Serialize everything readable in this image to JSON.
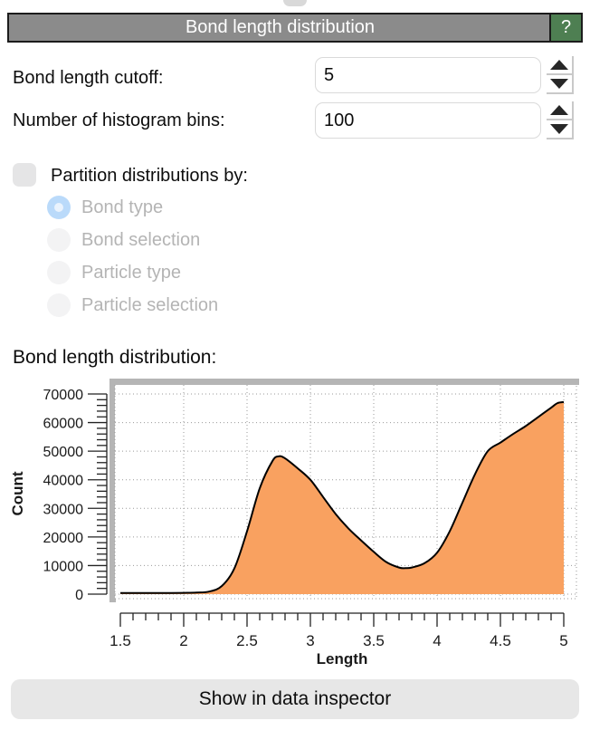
{
  "header": {
    "title": "Bond length distribution",
    "help_label": "?"
  },
  "params": [
    {
      "label": "Bond length cutoff:",
      "value": "5"
    },
    {
      "label": "Number of histogram bins:",
      "value": "100"
    }
  ],
  "partition": {
    "checkbox_label": "Partition distributions by:",
    "checked": false,
    "options": [
      {
        "label": "Bond type",
        "selected": true
      },
      {
        "label": "Bond selection",
        "selected": false
      },
      {
        "label": "Particle type",
        "selected": false
      },
      {
        "label": "Particle selection",
        "selected": false
      }
    ]
  },
  "plot_heading": "Bond length distribution:",
  "chart_data": {
    "type": "area",
    "title": "",
    "xlabel": "Length",
    "ylabel": "Count",
    "xlim": [
      1.5,
      5.0
    ],
    "ylim": [
      0,
      70000
    ],
    "x_major_ticks": [
      1.5,
      2,
      2.5,
      3,
      3.5,
      4,
      4.5,
      5
    ],
    "x_tick_labels": [
      "1.5",
      "2",
      "2.5",
      "3",
      "3.5",
      "4",
      "4.5",
      "5"
    ],
    "x_minor_step": 0.1,
    "y_major_ticks": [
      0,
      10000,
      20000,
      30000,
      40000,
      50000,
      60000,
      70000
    ],
    "y_tick_labels": [
      "0",
      "10000",
      "20000",
      "30000",
      "40000",
      "50000",
      "60000",
      "70000"
    ],
    "y_minor_step": 2000,
    "grid": "dotted",
    "legend": "none",
    "fill_color": "#F9A160",
    "line_color": "#000000",
    "x": [
      1.5,
      1.6,
      1.7,
      1.8,
      1.9,
      2.0,
      2.1,
      2.2,
      2.3,
      2.4,
      2.5,
      2.6,
      2.7,
      2.75,
      2.8,
      2.9,
      3.0,
      3.1,
      3.2,
      3.3,
      3.4,
      3.5,
      3.6,
      3.7,
      3.75,
      3.8,
      3.9,
      4.0,
      4.1,
      4.2,
      4.3,
      4.4,
      4.5,
      4.6,
      4.7,
      4.8,
      4.9,
      4.95,
      5.0
    ],
    "y": [
      400,
      400,
      400,
      400,
      400,
      450,
      550,
      900,
      2800,
      9000,
      22000,
      37000,
      46500,
      48200,
      47500,
      44000,
      40000,
      34000,
      28000,
      23000,
      18800,
      14800,
      11200,
      9300,
      9100,
      9300,
      10800,
      14500,
      22000,
      32000,
      42000,
      50000,
      53000,
      56000,
      58800,
      62000,
      65200,
      66800,
      67200
    ]
  },
  "footer": {
    "button_label": "Show in data inspector"
  },
  "colors": {
    "title_bar_bg": "#8b8b8b",
    "title_bar_border": "#1c1c1c",
    "help_button_green": "#4e7f52",
    "histogram_fill": "#F9A160",
    "radio_selected_blue": "#badafa",
    "disabled_text": "#b4b4b4",
    "chart_frame_gray": "#b5b5b5"
  }
}
